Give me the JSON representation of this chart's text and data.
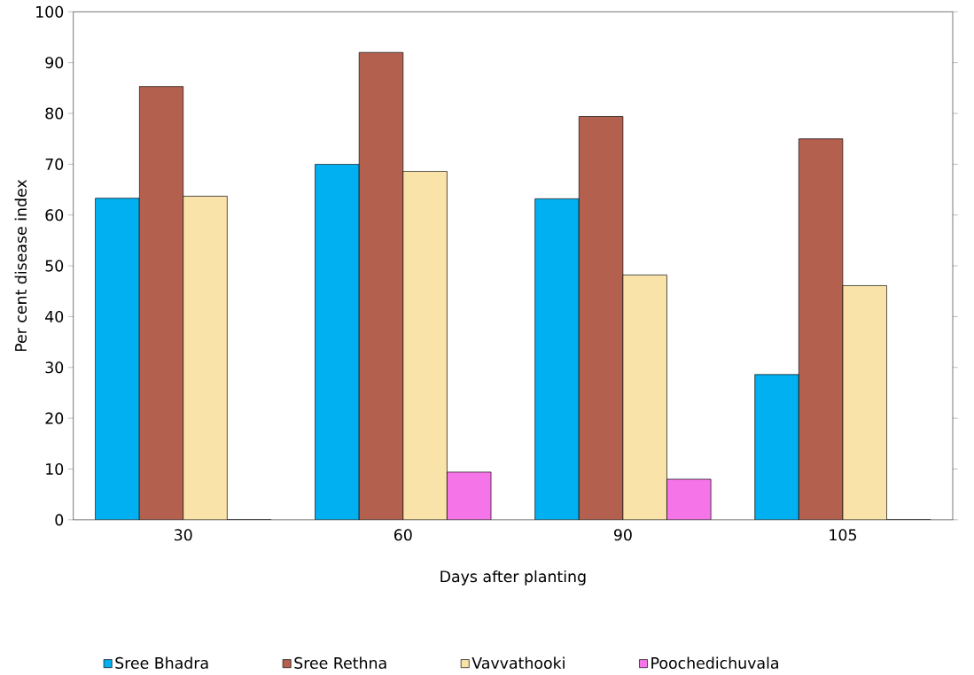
{
  "chart_data": {
    "type": "bar",
    "xlabel": "Days after planting",
    "ylabel": "Per cent disease index",
    "categories": [
      "30",
      "60",
      "90",
      "105"
    ],
    "series": [
      {
        "name": "Sree Bhadra",
        "color": "#00b0f0",
        "values": [
          63.3,
          70.0,
          63.2,
          28.6
        ]
      },
      {
        "name": "Sree Rethna",
        "color": "#b4604f",
        "values": [
          85.3,
          92.0,
          79.4,
          75.0
        ]
      },
      {
        "name": "Vavvathooki",
        "color": "#fae3a8",
        "values": [
          63.7,
          68.6,
          48.2,
          46.1
        ]
      },
      {
        "name": "Poochedichuvala",
        "color": "#f575e8",
        "values": [
          0,
          9.4,
          8.0,
          0
        ]
      }
    ],
    "ylim": [
      0,
      100
    ],
    "yticks": [
      0,
      10,
      20,
      30,
      40,
      50,
      60,
      70,
      80,
      90,
      100
    ],
    "grid": false,
    "legend": "bottom"
  }
}
